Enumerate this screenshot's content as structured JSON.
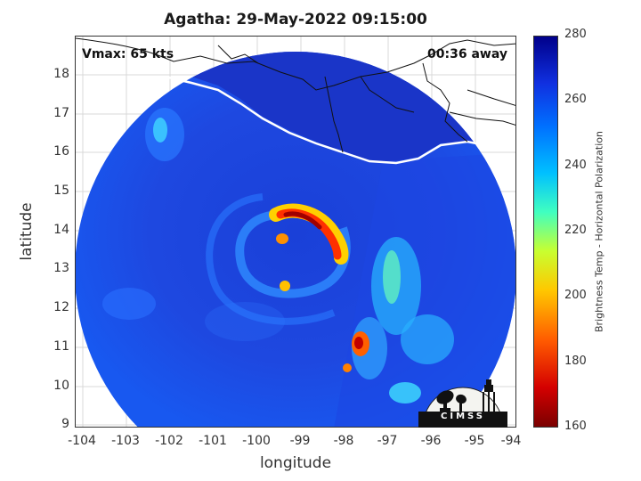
{
  "title": "Agatha: 29-May-2022 09:15:00",
  "annotations": {
    "vmax": "Vmax: 65 kts",
    "away": "00:36 away"
  },
  "axes": {
    "xlabel": "longitude",
    "ylabel": "latitude",
    "xticks": [
      "-104",
      "-103",
      "-102",
      "-101",
      "-100",
      "-99",
      "-98",
      "-97",
      "-96",
      "-95",
      "-94"
    ],
    "yticks": [
      "18",
      "17",
      "16",
      "15",
      "14",
      "13",
      "12",
      "11",
      "10",
      "9"
    ],
    "xlim": [
      -104.2,
      -93.9
    ],
    "ylim": [
      8.9,
      19.0
    ]
  },
  "colorbar": {
    "label": "Brightness Temp - Horizontal Polarization",
    "ticks": [
      "280",
      "260",
      "240",
      "220",
      "200",
      "180",
      "160"
    ],
    "range": [
      160,
      280
    ],
    "colormap": "jet"
  },
  "logo": {
    "text": "CIMSS"
  },
  "colors": {
    "background_scan": "#1e3fd0",
    "coast": "#ffffff"
  }
}
